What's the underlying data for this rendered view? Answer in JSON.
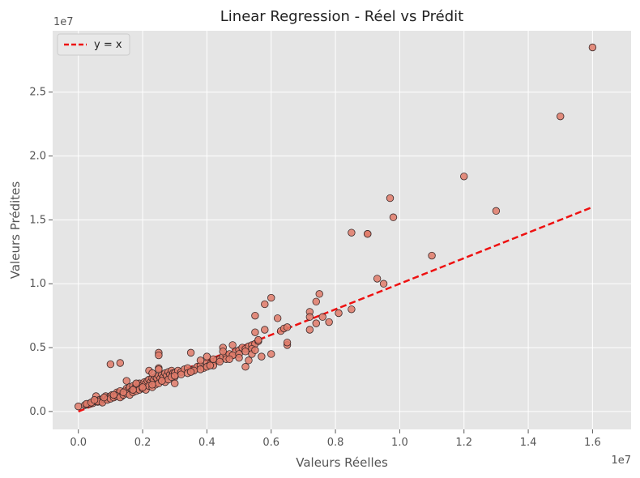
{
  "chart_data": {
    "type": "scatter",
    "title": "Linear Regression - Réel vs Prédit",
    "xlabel": "Valeurs Réelles",
    "ylabel": "Valeurs Prédites",
    "x_offset_label": "1e7",
    "y_offset_label": "1e7",
    "xlim": [
      -0.08,
      1.72
    ],
    "ylim": [
      -0.14,
      2.98
    ],
    "x_ticks": [
      0.0,
      0.2,
      0.4,
      0.6,
      0.8,
      1.0,
      1.2,
      1.4,
      1.6
    ],
    "x_tick_labels": [
      "0.0",
      "0.2",
      "0.4",
      "0.6",
      "0.8",
      "1.0",
      "1.2",
      "1.4",
      "1.6"
    ],
    "y_ticks": [
      0.0,
      0.5,
      1.0,
      1.5,
      2.0,
      2.5
    ],
    "y_tick_labels": [
      "0.0",
      "0.5",
      "1.0",
      "1.5",
      "2.0",
      "2.5"
    ],
    "grid": true,
    "legend_position": "top-left",
    "colors": {
      "background": "#e5e5e5",
      "grid": "#ffffff",
      "point_fill": "#e07b6a",
      "point_edge": "#3a2a2a",
      "line": "#ee1111"
    },
    "series": [
      {
        "kind": "line",
        "name": "y = x",
        "x": [
          0.0,
          1.6
        ],
        "y": [
          0.0,
          1.6
        ]
      },
      {
        "kind": "scatter",
        "x": [
          0.0,
          0.02,
          0.025,
          0.03,
          0.035,
          0.04,
          0.045,
          0.05,
          0.055,
          0.06,
          0.065,
          0.07,
          0.075,
          0.08,
          0.085,
          0.09,
          0.095,
          0.1,
          0.105,
          0.11,
          0.115,
          0.12,
          0.125,
          0.13,
          0.135,
          0.14,
          0.145,
          0.15,
          0.155,
          0.16,
          0.165,
          0.17,
          0.175,
          0.18,
          0.185,
          0.19,
          0.195,
          0.2,
          0.205,
          0.21,
          0.215,
          0.22,
          0.225,
          0.23,
          0.235,
          0.24,
          0.245,
          0.25,
          0.255,
          0.26,
          0.265,
          0.27,
          0.275,
          0.28,
          0.285,
          0.29,
          0.295,
          0.3,
          0.31,
          0.32,
          0.33,
          0.34,
          0.35,
          0.36,
          0.37,
          0.38,
          0.39,
          0.4,
          0.41,
          0.42,
          0.43,
          0.44,
          0.45,
          0.46,
          0.47,
          0.48,
          0.49,
          0.5,
          0.51,
          0.52,
          0.53,
          0.54,
          0.55,
          0.56,
          0.025,
          0.04,
          0.06,
          0.075,
          0.09,
          0.1,
          0.11,
          0.12,
          0.13,
          0.14,
          0.15,
          0.16,
          0.17,
          0.18,
          0.19,
          0.2,
          0.21,
          0.22,
          0.23,
          0.24,
          0.25,
          0.26,
          0.27,
          0.28,
          0.3,
          0.32,
          0.34,
          0.36,
          0.38,
          0.4,
          0.42,
          0.44,
          0.46,
          0.48,
          0.5,
          0.52,
          0.54,
          0.05,
          0.08,
          0.11,
          0.14,
          0.17,
          0.2,
          0.23,
          0.26,
          0.29,
          0.35,
          0.41,
          0.47,
          0.1,
          0.13,
          0.15,
          0.18,
          0.22,
          0.23,
          0.25,
          0.25,
          0.25,
          0.25,
          0.3,
          0.3,
          0.35,
          0.38,
          0.4,
          0.42,
          0.45,
          0.45,
          0.48,
          0.5,
          0.52,
          0.53,
          0.54,
          0.55,
          0.55,
          0.55,
          0.56,
          0.57,
          0.58,
          0.58,
          0.6,
          0.6,
          0.62,
          0.63,
          0.64,
          0.65,
          0.65,
          0.65,
          0.72,
          0.72,
          0.72,
          0.74,
          0.74,
          0.75,
          0.76,
          0.78,
          0.81,
          0.85,
          0.85,
          0.9,
          0.9,
          0.93,
          0.95,
          0.97,
          0.98,
          1.1,
          1.2,
          1.3,
          1.5,
          1.6
        ],
        "y": [
          0.04,
          0.05,
          0.055,
          0.06,
          0.06,
          0.07,
          0.065,
          0.08,
          0.12,
          0.075,
          0.09,
          0.08,
          0.1,
          0.1,
          0.12,
          0.1,
          0.11,
          0.12,
          0.13,
          0.11,
          0.13,
          0.15,
          0.14,
          0.16,
          0.12,
          0.14,
          0.16,
          0.18,
          0.17,
          0.19,
          0.16,
          0.2,
          0.18,
          0.21,
          0.19,
          0.22,
          0.2,
          0.21,
          0.23,
          0.22,
          0.24,
          0.25,
          0.23,
          0.26,
          0.25,
          0.27,
          0.26,
          0.28,
          0.26,
          0.29,
          0.27,
          0.3,
          0.28,
          0.31,
          0.29,
          0.32,
          0.3,
          0.3,
          0.32,
          0.31,
          0.33,
          0.34,
          0.31,
          0.33,
          0.35,
          0.36,
          0.34,
          0.38,
          0.37,
          0.39,
          0.4,
          0.41,
          0.43,
          0.44,
          0.45,
          0.44,
          0.47,
          0.48,
          0.5,
          0.49,
          0.51,
          0.52,
          0.53,
          0.55,
          0.06,
          0.07,
          0.08,
          0.07,
          0.09,
          0.1,
          0.11,
          0.12,
          0.11,
          0.13,
          0.14,
          0.13,
          0.15,
          0.16,
          0.17,
          0.18,
          0.17,
          0.2,
          0.19,
          0.21,
          0.22,
          0.24,
          0.23,
          0.25,
          0.27,
          0.29,
          0.3,
          0.32,
          0.33,
          0.35,
          0.36,
          0.39,
          0.41,
          0.44,
          0.45,
          0.47,
          0.49,
          0.09,
          0.11,
          0.13,
          0.15,
          0.17,
          0.19,
          0.21,
          0.24,
          0.27,
          0.31,
          0.36,
          0.41,
          0.37,
          0.38,
          0.24,
          0.22,
          0.32,
          0.3,
          0.46,
          0.44,
          0.34,
          0.33,
          0.22,
          0.28,
          0.46,
          0.4,
          0.43,
          0.41,
          0.5,
          0.47,
          0.52,
          0.42,
          0.35,
          0.4,
          0.45,
          0.48,
          0.62,
          0.75,
          0.56,
          0.43,
          0.84,
          0.64,
          0.45,
          0.89,
          0.73,
          0.63,
          0.65,
          0.66,
          0.52,
          0.54,
          0.64,
          0.78,
          0.74,
          0.69,
          0.86,
          0.92,
          0.74,
          0.7,
          0.77,
          1.4,
          0.8,
          1.39,
          1.39,
          1.04,
          1.0,
          1.67,
          1.52,
          1.22,
          1.84,
          1.57,
          2.31,
          2.85
        ]
      }
    ]
  }
}
